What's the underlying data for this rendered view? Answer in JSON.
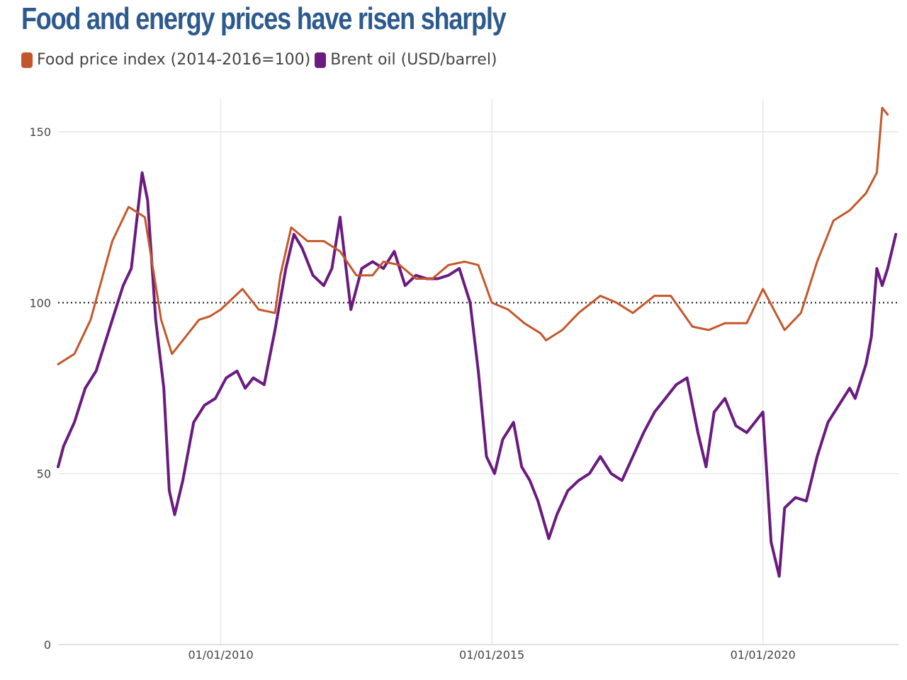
{
  "title": "Food and energy prices have risen sharply",
  "legend": [
    {
      "label": "Food price index (2014-2016=100)",
      "color": "#c4572a"
    },
    {
      "label": "Brent oil (USD/barrel)",
      "color": "#6a1b7f"
    }
  ],
  "chart_data": {
    "type": "line",
    "title": "Food and energy prices have risen sharply",
    "xlabel": "",
    "ylabel": "",
    "xlim": [
      2007.0,
      2022.5
    ],
    "ylim": [
      0,
      160
    ],
    "y_ticks": [
      0,
      50,
      100,
      150
    ],
    "x_ticks": [
      {
        "value": 2010.0,
        "label": "01/01/2010"
      },
      {
        "value": 2015.0,
        "label": "01/01/2015"
      },
      {
        "value": 2020.0,
        "label": "01/01/2020"
      }
    ],
    "reference_line": {
      "y": 100,
      "style": "dotted"
    },
    "series": [
      {
        "name": "Food price index (2014-2016=100)",
        "color": "#c4572a",
        "x": [
          2007.0,
          2007.3,
          2007.6,
          2008.0,
          2008.3,
          2008.6,
          2008.9,
          2009.1,
          2009.3,
          2009.6,
          2009.8,
          2010.0,
          2010.4,
          2010.7,
          2011.0,
          2011.1,
          2011.3,
          2011.6,
          2011.9,
          2012.2,
          2012.5,
          2012.8,
          2013.0,
          2013.3,
          2013.6,
          2013.9,
          2014.2,
          2014.5,
          2014.75,
          2015.0,
          2015.3,
          2015.6,
          2015.9,
          2016.0,
          2016.3,
          2016.6,
          2017.0,
          2017.3,
          2017.6,
          2018.0,
          2018.3,
          2018.7,
          2019.0,
          2019.3,
          2019.7,
          2020.0,
          2020.4,
          2020.7,
          2021.0,
          2021.3,
          2021.6,
          2021.9,
          2022.1,
          2022.2,
          2022.3
        ],
        "values": [
          82,
          85,
          95,
          118,
          128,
          125,
          95,
          85,
          89,
          95,
          96,
          98,
          104,
          98,
          97,
          108,
          122,
          118,
          118,
          115,
          108,
          108,
          112,
          111,
          107,
          107,
          111,
          112,
          111,
          100,
          98,
          94,
          91,
          89,
          92,
          97,
          102,
          100,
          97,
          102,
          102,
          93,
          92,
          94,
          94,
          104,
          92,
          97,
          112,
          124,
          127,
          132,
          138,
          157,
          155
        ]
      },
      {
        "name": "Brent oil (USD/barrel)",
        "color": "#6a1b7f",
        "x": [
          2007.0,
          2007.1,
          2007.3,
          2007.5,
          2007.7,
          2007.9,
          2008.0,
          2008.2,
          2008.35,
          2008.55,
          2008.65,
          2008.8,
          2008.95,
          2009.05,
          2009.15,
          2009.3,
          2009.5,
          2009.7,
          2009.9,
          2010.1,
          2010.3,
          2010.45,
          2010.6,
          2010.8,
          2011.0,
          2011.2,
          2011.35,
          2011.5,
          2011.7,
          2011.9,
          2012.05,
          2012.2,
          2012.4,
          2012.6,
          2012.8,
          2013.0,
          2013.2,
          2013.4,
          2013.6,
          2013.8,
          2014.0,
          2014.2,
          2014.4,
          2014.6,
          2014.75,
          2014.9,
          2015.05,
          2015.2,
          2015.4,
          2015.55,
          2015.7,
          2015.85,
          2016.05,
          2016.2,
          2016.4,
          2016.6,
          2016.8,
          2017.0,
          2017.2,
          2017.4,
          2017.6,
          2017.8,
          2018.0,
          2018.2,
          2018.4,
          2018.6,
          2018.8,
          2018.95,
          2019.1,
          2019.3,
          2019.5,
          2019.7,
          2019.9,
          2020.0,
          2020.15,
          2020.3,
          2020.4,
          2020.6,
          2020.8,
          2021.0,
          2021.2,
          2021.4,
          2021.6,
          2021.7,
          2021.9,
          2022.0,
          2022.1,
          2022.2,
          2022.3,
          2022.45
        ],
        "values": [
          52,
          58,
          65,
          75,
          80,
          90,
          95,
          105,
          110,
          138,
          130,
          95,
          75,
          45,
          38,
          48,
          65,
          70,
          72,
          78,
          80,
          75,
          78,
          76,
          92,
          110,
          120,
          116,
          108,
          105,
          110,
          125,
          98,
          110,
          112,
          110,
          115,
          105,
          108,
          107,
          107,
          108,
          110,
          100,
          80,
          55,
          50,
          60,
          65,
          52,
          48,
          42,
          31,
          38,
          45,
          48,
          50,
          55,
          50,
          48,
          55,
          62,
          68,
          72,
          76,
          78,
          62,
          52,
          68,
          72,
          64,
          62,
          66,
          68,
          30,
          20,
          40,
          43,
          42,
          55,
          65,
          70,
          75,
          72,
          82,
          90,
          110,
          105,
          110,
          120
        ]
      }
    ]
  }
}
